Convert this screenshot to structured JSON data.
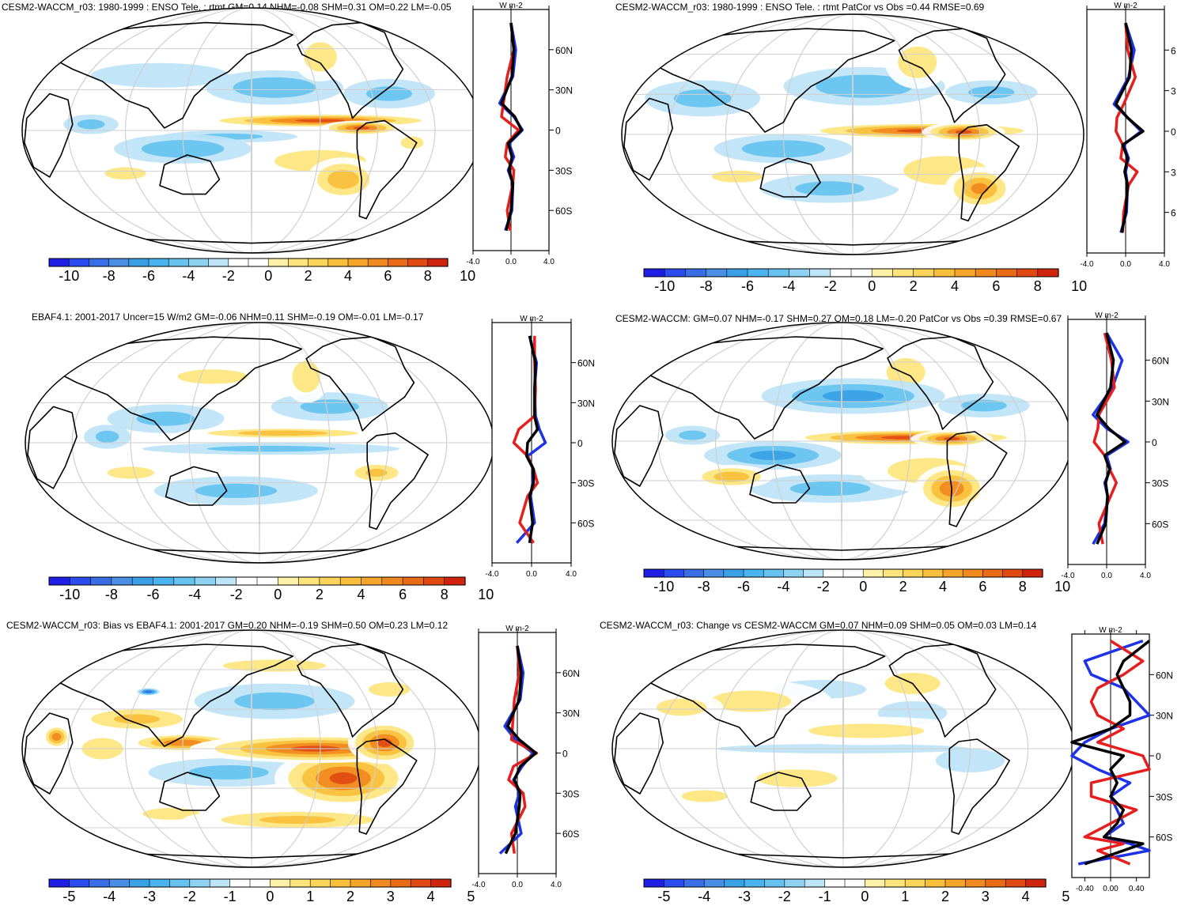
{
  "colors": {
    "neg": [
      "#1e1ee6",
      "#2a4cf0",
      "#3a6ee6",
      "#4a8ee6",
      "#3aa0e6",
      "#4ab4f0",
      "#66c3ef",
      "#8ed2f2",
      "#bde4f7"
    ],
    "zero": "#ffffff",
    "pos": [
      "#fff2a8",
      "#fde57c",
      "#fbd45a",
      "#f8bf3c",
      "#f5a52a",
      "#f18a1e",
      "#ea6a16",
      "#e04a12",
      "#d0240e"
    ],
    "line_obs": "#e51e1e",
    "line_model": "#1e32e6",
    "line_diff": "#000000",
    "map_ocean": "#ffffff"
  },
  "panels": [
    {
      "id": "p1",
      "title": "CESM2-WACCM_r03: 1980-1999 : ENSO Tele. : rtmt GM=0.14 NHM=-0.08 SHM=0.31 OM=0.22 LM=-0.05",
      "colorbar_labels": [
        "-10",
        "-8",
        "-6",
        "-4",
        "-2",
        "0",
        "2",
        "4",
        "6",
        "8",
        "10"
      ],
      "zonal_ticks_y": [
        "60N",
        "30N",
        "0",
        "30S",
        "60S"
      ],
      "zonal_ticks_x": [
        "-4.0",
        "0.0",
        "4.0"
      ],
      "zonal_units": "W m-2"
    },
    {
      "id": "p2",
      "title": "CESM2-WACCM_r03: 1980-1999 : ENSO Tele. : rtmt PatCor vs Obs =0.44 RMSE=0.69",
      "colorbar_labels": [
        "-10",
        "-8",
        "-6",
        "-4",
        "-2",
        "0",
        "2",
        "4",
        "6",
        "8",
        "10"
      ],
      "zonal_ticks_y": [
        "6",
        "3",
        "0",
        "3",
        "6"
      ],
      "zonal_ticks_x": [
        "-4.0",
        "0.0",
        "4.0"
      ],
      "zonal_units": "W m-2"
    },
    {
      "id": "p3",
      "title": "EBAF4.1: 2001-2017 Uncer=15 W/m2 GM=-0.06 NHM=0.11 SHM=-0.19 OM=-0.01 LM=-0.17",
      "colorbar_labels": [
        "-10",
        "-8",
        "-6",
        "-4",
        "-2",
        "0",
        "2",
        "4",
        "6",
        "8",
        "10"
      ],
      "zonal_ticks_y": [
        "60N",
        "30N",
        "0",
        "30S",
        "60S"
      ],
      "zonal_ticks_x": [
        "-4.0",
        "0.0",
        "4.0"
      ],
      "zonal_units": "W m-2"
    },
    {
      "id": "p4",
      "title": "CESM2-WACCM: GM=0.07 NHM=-0.17 SHM=0.27 OM=0.18 LM=-0.20 PatCor vs Obs =0.39 RMSE=0.67",
      "colorbar_labels": [
        "-10",
        "-8",
        "-6",
        "-4",
        "-2",
        "0",
        "2",
        "4",
        "6",
        "8",
        "10"
      ],
      "zonal_ticks_y": [
        "60N",
        "30N",
        "0",
        "30S",
        "60S"
      ],
      "zonal_ticks_x": [
        "-4.0",
        "0.0",
        "4.0"
      ],
      "zonal_units": "W m-2"
    },
    {
      "id": "p5",
      "title": "CESM2-WACCM_r03: Bias vs EBAF4.1: 2001-2017 GM=0.20 NHM=-0.19 SHM=0.50 OM=0.23 LM=0.12",
      "colorbar_labels": [
        "-5",
        "-4",
        "-3",
        "-2",
        "-1",
        "0",
        "1",
        "2",
        "3",
        "4",
        "5"
      ],
      "zonal_ticks_y": [
        "60N",
        "30N",
        "0",
        "30S",
        "60S"
      ],
      "zonal_ticks_x": [
        "-4.0",
        "0.0",
        "4.0"
      ],
      "zonal_units": "W m-2"
    },
    {
      "id": "p6",
      "title": "CESM2-WACCM_r03: Change vs CESM2-WACCM GM=0.07 NHM=0.09 SHM=0.05 OM=0.03 LM=0.14",
      "colorbar_labels": [
        "-5",
        "-4",
        "-3",
        "-2",
        "-1",
        "0",
        "1",
        "2",
        "3",
        "4",
        "5"
      ],
      "zonal_ticks_y": [
        "60N",
        "30N",
        "0",
        "30S",
        "60S"
      ],
      "zonal_ticks_x": [
        "-0.40",
        "0.00",
        "0.40"
      ],
      "zonal_units": "W m-2"
    }
  ],
  "chart_data": [
    {
      "type": "heatmap",
      "title": "CESM2-WACCM_r03: 1980-1999 : ENSO Tele. : rtmt GM=0.14 NHM=-0.08 SHM=0.31 OM=0.22 LM=-0.05",
      "colorbar": [
        -10,
        -8,
        -6,
        -4,
        -2,
        0,
        2,
        4,
        6,
        8,
        10
      ],
      "zonal_mean": {
        "type": "line",
        "xlim": [
          -4,
          4
        ],
        "ylim": [
          -90,
          90
        ],
        "lat": [
          80,
          60,
          40,
          20,
          10,
          0,
          -10,
          -20,
          -30,
          -40,
          -60,
          -75
        ],
        "series": [
          {
            "name": "model",
            "values": [
              0,
              0.5,
              0.2,
              -1.2,
              0.3,
              1.2,
              -0.2,
              0.3,
              -0.3,
              0.2,
              0.1,
              -0.6
            ]
          },
          {
            "name": "obs",
            "values": [
              0,
              0.3,
              -0.4,
              -0.8,
              -1.0,
              0.8,
              -0.4,
              -0.6,
              0.3,
              0.2,
              -0.4,
              -0.1
            ]
          },
          {
            "name": "difference",
            "values": [
              0,
              0.3,
              0.1,
              -1.0,
              0.4,
              1.1,
              -0.3,
              0.1,
              -0.2,
              0.2,
              0.0,
              -0.5
            ]
          }
        ]
      }
    },
    {
      "type": "heatmap",
      "title": "CESM2-WACCM_r03: 1980-1999 : ENSO Tele. : rtmt PatCor vs Obs =0.44 RMSE=0.69",
      "colorbar": [
        -10,
        -8,
        -6,
        -4,
        -2,
        0,
        2,
        4,
        6,
        8,
        10
      ],
      "zonal_mean": {
        "type": "line",
        "xlim": [
          -4,
          4
        ],
        "ylim": [
          -90,
          90
        ],
        "lat": [
          80,
          60,
          40,
          20,
          10,
          0,
          -10,
          -20,
          -30,
          -40,
          -60,
          -75
        ],
        "series": [
          {
            "name": "model",
            "values": [
              0,
              0.9,
              0.3,
              -1.2,
              0.2,
              1.6,
              -0.2,
              0.3,
              0.0,
              0.2,
              0.1,
              -0.5
            ]
          },
          {
            "name": "obs",
            "values": [
              0,
              0.2,
              1.0,
              -0.2,
              -0.9,
              -1.0,
              -0.3,
              -0.5,
              1.2,
              0.3,
              -0.2,
              -0.3
            ]
          },
          {
            "name": "difference",
            "values": [
              0,
              0.6,
              0.4,
              -1.0,
              0.2,
              1.8,
              -0.3,
              0.2,
              -0.1,
              0.2,
              0.0,
              -0.4
            ]
          }
        ]
      }
    },
    {
      "type": "heatmap",
      "title": "EBAF4.1: 2001-2017 Uncer=15 W/m2 GM=-0.06 NHM=0.11 SHM=-0.19 OM=-0.01 LM=-0.17",
      "colorbar": [
        -10,
        -8,
        -6,
        -4,
        -2,
        0,
        2,
        4,
        6,
        8,
        10
      ],
      "zonal_mean": {
        "type": "line",
        "xlim": [
          -4,
          4
        ],
        "ylim": [
          -90,
          90
        ],
        "lat": [
          80,
          60,
          40,
          20,
          10,
          0,
          -10,
          -20,
          -30,
          -40,
          -60,
          -75
        ],
        "series": [
          {
            "name": "model",
            "values": [
              -0.2,
              0.5,
              0.3,
              0.4,
              0.8,
              1.4,
              -0.4,
              0.2,
              0.1,
              -0.1,
              0.3,
              -1.5
            ]
          },
          {
            "name": "obs",
            "values": [
              0.3,
              0.3,
              0.4,
              0.3,
              -1.3,
              -1.8,
              -0.4,
              0.2,
              0.6,
              -0.4,
              -1.2,
              0.2
            ]
          },
          {
            "name": "difference",
            "values": [
              -0.2,
              0.4,
              0.3,
              0.3,
              0.6,
              -0.4,
              -0.5,
              0.2,
              0.2,
              -0.2,
              0.1,
              -0.2
            ]
          }
        ]
      }
    },
    {
      "type": "heatmap",
      "title": "CESM2-WACCM: GM=0.07 NHM=-0.17 SHM=0.27 OM=0.18 LM=-0.20 PatCor vs Obs =0.39 RMSE=0.67",
      "colorbar": [
        -10,
        -8,
        -6,
        -4,
        -2,
        0,
        2,
        4,
        6,
        8,
        10
      ],
      "zonal_mean": {
        "type": "line",
        "xlim": [
          -4,
          4
        ],
        "ylim": [
          -90,
          90
        ],
        "lat": [
          80,
          60,
          40,
          20,
          10,
          0,
          -10,
          -20,
          -30,
          -40,
          -60,
          -75
        ],
        "series": [
          {
            "name": "model",
            "values": [
              0,
              1.6,
              0.6,
              -1.4,
              0.0,
              2.2,
              0.0,
              0.4,
              -0.2,
              0.1,
              -0.2,
              -1.4
            ]
          },
          {
            "name": "obs",
            "values": [
              -0.2,
              0.5,
              0.8,
              -0.8,
              -0.9,
              -1.3,
              -0.2,
              0.3,
              1.0,
              0.4,
              -0.8,
              -0.4
            ]
          },
          {
            "name": "difference",
            "values": [
              0,
              0.7,
              0.4,
              -1.0,
              0.2,
              1.9,
              -0.2,
              0.3,
              -0.1,
              0.1,
              -0.1,
              -1.0
            ]
          }
        ]
      }
    },
    {
      "type": "heatmap",
      "title": "CESM2-WACCM_r03: Bias vs EBAF4.1: 2001-2017 GM=0.20 NHM=-0.19 SHM=0.50 OM=0.23 LM=0.12",
      "colorbar": [
        -5,
        -4,
        -3,
        -2,
        -1,
        0,
        1,
        2,
        3,
        4,
        5
      ],
      "zonal_mean": {
        "type": "line",
        "xlim": [
          -4,
          4
        ],
        "ylim": [
          -90,
          90
        ],
        "lat": [
          80,
          60,
          40,
          20,
          10,
          0,
          -10,
          -20,
          -30,
          -40,
          -60,
          -75
        ],
        "series": [
          {
            "name": "model",
            "values": [
              0,
              0.6,
              0.3,
              -1.3,
              -0.2,
              1.6,
              0.5,
              -0.4,
              0.2,
              -0.2,
              0.4,
              -1.8
            ]
          },
          {
            "name": "obs",
            "values": [
              0,
              0.2,
              -0.3,
              -0.5,
              -0.6,
              2.0,
              -0.4,
              -0.9,
              0.6,
              0.8,
              -0.6,
              -0.3
            ]
          },
          {
            "name": "difference",
            "values": [
              0,
              0.4,
              0.2,
              -1.0,
              0.2,
              1.9,
              0.3,
              -0.3,
              0.3,
              0.2,
              -0.2,
              -1.2
            ]
          }
        ]
      }
    },
    {
      "type": "heatmap",
      "title": "CESM2-WACCM_r03: Change vs CESM2-WACCM GM=0.07 NHM=0.09 SHM=0.05 OM=0.03 LM=0.14",
      "colorbar": [
        -5,
        -4,
        -3,
        -2,
        -1,
        0,
        1,
        2,
        3,
        4,
        5
      ],
      "zonal_mean": {
        "type": "line",
        "xlim": [
          -0.6,
          0.6
        ],
        "ylim": [
          -90,
          90
        ],
        "lat": [
          85,
          70,
          60,
          50,
          40,
          30,
          20,
          10,
          0,
          -10,
          -20,
          -30,
          -40,
          -50,
          -60,
          -65,
          -70,
          -80
        ],
        "series": [
          {
            "name": "model",
            "values": [
              0.5,
              -0.4,
              -0.3,
              0.2,
              0.4,
              0.6,
              0.0,
              -0.4,
              -0.6,
              -0.2,
              0.3,
              0.0,
              0.1,
              0.2,
              -0.1,
              0.3,
              0.6,
              -0.5
            ]
          },
          {
            "name": "obs",
            "values": [
              0.0,
              0.5,
              0.2,
              -0.2,
              -0.3,
              -0.2,
              0.2,
              -0.2,
              0.5,
              0.6,
              -0.3,
              -0.3,
              0.4,
              0.0,
              -0.4,
              0.2,
              -0.2,
              0.3
            ]
          },
          {
            "name": "difference",
            "values": [
              0.6,
              0.2,
              0.1,
              0.2,
              0.3,
              0.3,
              0.0,
              -0.6,
              0.2,
              0.0,
              0.1,
              0.0,
              0.2,
              0.1,
              -0.1,
              0.5,
              0.2,
              -0.4
            ]
          }
        ]
      }
    }
  ]
}
